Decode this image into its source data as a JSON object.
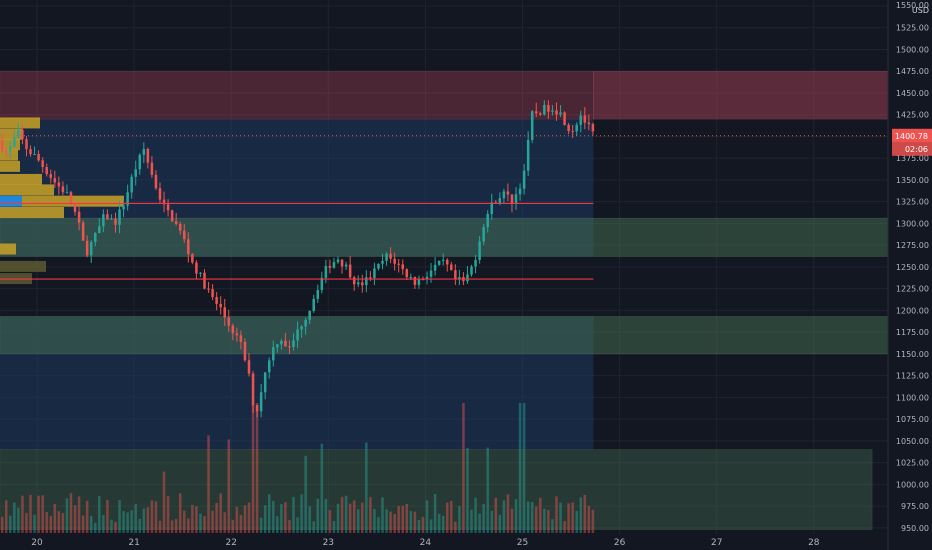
{
  "currency_label": "USD",
  "price_axis": {
    "ticks": [
      "1550.00",
      "1525.00",
      "1500.00",
      "1475.00",
      "1450.00",
      "1425.00",
      "1400.00",
      "1375.00",
      "1350.00",
      "1325.00",
      "1300.00",
      "1275.00",
      "1250.00",
      "1225.00",
      "1200.00",
      "1175.00",
      "1150.00",
      "1125.00",
      "1100.00",
      "1075.00",
      "1050.00",
      "1025.00",
      "1000.00",
      "975.00",
      "950.00"
    ],
    "current_price_label": "1400.78",
    "countdown_label": "02:06"
  },
  "time_axis": {
    "labels": [
      "20",
      "21",
      "22",
      "23",
      "24",
      "25",
      "26",
      "27",
      "28"
    ]
  },
  "colors": {
    "background": "#131722",
    "up": "#26a69a",
    "down": "#ef5350",
    "zone_red": "#b2445a",
    "zone_green": "#4c7a56",
    "line_red": "#f23645",
    "vp_yellow": "#c9a227",
    "vp_blue": "#2196f3"
  },
  "chart_data": {
    "type": "candlestick",
    "ylim": [
      945,
      1560
    ],
    "x_unit": "day",
    "xlim": [
      19.6,
      28.8
    ],
    "last_candle_x": 25.73,
    "current_price": 1400.78,
    "zones": [
      {
        "kind": "resistance",
        "y_low": 1420,
        "y_high": 1475,
        "x_end": 25.73
      },
      {
        "kind": "resistance-projection",
        "y_low": 1420,
        "y_high": 1475,
        "x_start": 25.73
      },
      {
        "kind": "support",
        "y_low": 1262,
        "y_high": 1306
      },
      {
        "kind": "support",
        "y_low": 1150,
        "y_high": 1193
      },
      {
        "kind": "volume-box",
        "y_low": 948,
        "y_high": 1040,
        "x_end": 28.6
      }
    ],
    "levels": [
      {
        "price": 1323,
        "x_end": 25.73
      },
      {
        "price": 1236,
        "x_end": 25.73
      }
    ],
    "volume_profile": [
      {
        "price": 1415,
        "width": 1.0,
        "color": "yellow"
      },
      {
        "price": 1402,
        "width": 0.55,
        "color": "yellow"
      },
      {
        "price": 1390,
        "width": 0.5,
        "color": "yellow"
      },
      {
        "price": 1378,
        "width": 0.45,
        "color": "yellow"
      },
      {
        "price": 1365,
        "width": 0.5,
        "color": "yellow"
      },
      {
        "price": 1350,
        "width": 1.05,
        "color": "yellow"
      },
      {
        "price": 1338,
        "width": 1.35,
        "color": "yellow"
      },
      {
        "price": 1325,
        "width": 0.55,
        "color": "blue"
      },
      {
        "price": 1325,
        "width": 2.55,
        "color": "yellow",
        "offset": 0.55
      },
      {
        "price": 1312,
        "width": 1.6,
        "color": "yellow"
      },
      {
        "price": 1270,
        "width": 0.4,
        "color": "yellow"
      },
      {
        "price": 1250,
        "width": 1.15,
        "color": "olive"
      },
      {
        "price": 1236,
        "width": 0.8,
        "color": "olive"
      }
    ],
    "anchors": [
      [
        19.6,
        1395
      ],
      [
        19.7,
        1380
      ],
      [
        19.8,
        1405
      ],
      [
        19.9,
        1385
      ],
      [
        20.0,
        1375
      ],
      [
        20.1,
        1360
      ],
      [
        20.2,
        1345
      ],
      [
        20.3,
        1335
      ],
      [
        20.4,
        1310
      ],
      [
        20.45,
        1290
      ],
      [
        20.5,
        1265
      ],
      [
        20.6,
        1285
      ],
      [
        20.7,
        1310
      ],
      [
        20.8,
        1300
      ],
      [
        20.9,
        1325
      ],
      [
        21.0,
        1360
      ],
      [
        21.1,
        1385
      ],
      [
        21.2,
        1350
      ],
      [
        21.3,
        1320
      ],
      [
        21.4,
        1305
      ],
      [
        21.5,
        1285
      ],
      [
        21.6,
        1255
      ],
      [
        21.7,
        1235
      ],
      [
        21.8,
        1215
      ],
      [
        21.9,
        1200
      ],
      [
        21.95,
        1188
      ],
      [
        22.0,
        1180
      ],
      [
        22.1,
        1160
      ],
      [
        22.15,
        1140
      ],
      [
        22.2,
        1115
      ],
      [
        22.25,
        1075
      ],
      [
        22.3,
        1105
      ],
      [
        22.4,
        1150
      ],
      [
        22.5,
        1170
      ],
      [
        22.6,
        1155
      ],
      [
        22.7,
        1180
      ],
      [
        22.8,
        1200
      ],
      [
        22.9,
        1230
      ],
      [
        23.0,
        1252
      ],
      [
        23.1,
        1260
      ],
      [
        23.2,
        1248
      ],
      [
        23.3,
        1228
      ],
      [
        23.4,
        1235
      ],
      [
        23.5,
        1248
      ],
      [
        23.6,
        1262
      ],
      [
        23.7,
        1255
      ],
      [
        23.8,
        1242
      ],
      [
        23.9,
        1232
      ],
      [
        24.0,
        1240
      ],
      [
        24.1,
        1250
      ],
      [
        24.2,
        1255
      ],
      [
        24.3,
        1235
      ],
      [
        24.4,
        1232
      ],
      [
        24.5,
        1255
      ],
      [
        24.6,
        1300
      ],
      [
        24.7,
        1325
      ],
      [
        24.8,
        1335
      ],
      [
        24.9,
        1325
      ],
      [
        25.0,
        1350
      ],
      [
        25.05,
        1385
      ],
      [
        25.1,
        1425
      ],
      [
        25.2,
        1430
      ],
      [
        25.3,
        1435
      ],
      [
        25.4,
        1425
      ],
      [
        25.5,
        1405
      ],
      [
        25.6,
        1425
      ],
      [
        25.73,
        1401
      ]
    ],
    "volume_unit_note": "relative",
    "volume_ylim": [
      0,
      1
    ]
  }
}
